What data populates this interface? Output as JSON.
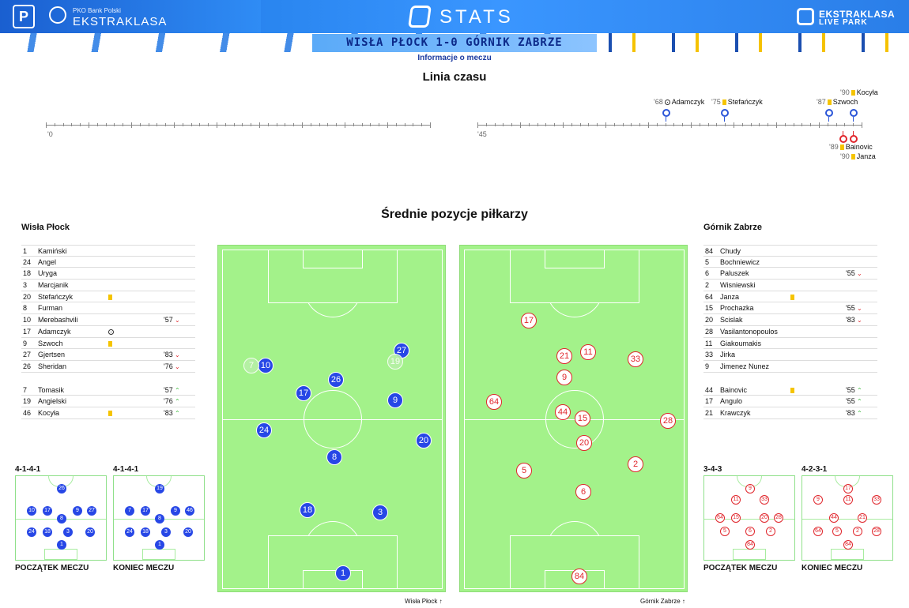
{
  "header": {
    "brand_small": "PKO Bank Polski",
    "brand_big": "EKSTRAKLASA",
    "stats_label": "STATS",
    "live_line1": "EKSTRAKLASA",
    "live_line2": "LIVE PARK",
    "match_title": "WISŁA PŁOCK 1-0 GÓRNIK ZABRZE",
    "match_info_link": "Informacje o meczu",
    "colors": {
      "accent": "#2a86f0",
      "home": "#2747e6",
      "away": "#e0262c",
      "pitch": "#a3f28a"
    }
  },
  "timeline": {
    "title": "Linia czasu",
    "first_half_label": "'0",
    "second_half_label": "'45",
    "events_top": [
      {
        "minute": "'68",
        "icon": "goal-ball-icon",
        "player": "Adamczyk"
      },
      {
        "minute": "'75",
        "icon": "yellow-card-icon",
        "player": "Stefańczyk"
      },
      {
        "minute": "'87",
        "icon": "yellow-card-icon",
        "player": "Szwoch"
      },
      {
        "minute": "'90",
        "icon": "yellow-card-icon",
        "player": "Kocyła"
      }
    ],
    "events_bottom": [
      {
        "minute": "'89",
        "icon": "yellow-card-icon",
        "player": "Bainovic"
      },
      {
        "minute": "'90",
        "icon": "yellow-card-icon",
        "player": "Janza"
      }
    ]
  },
  "positions": {
    "title": "Średnie pozycje piłkarzy",
    "home_caption": "Wisła Płock",
    "away_caption": "Górnik Zabrze",
    "home_players": [
      "27",
      "10",
      "7",
      "19",
      "26",
      "17",
      "9",
      "24",
      "20",
      "8",
      "18",
      "3",
      "1"
    ],
    "away_players": [
      "17",
      "21",
      "11",
      "33",
      "9",
      "64",
      "44",
      "15",
      "28",
      "20",
      "5",
      "2",
      "6",
      "84"
    ]
  },
  "home": {
    "team": "Wisła Płock",
    "starters": [
      {
        "num": "1",
        "name": "Kamiński",
        "icon": "",
        "sub": ""
      },
      {
        "num": "24",
        "name": "Angel",
        "icon": "",
        "sub": ""
      },
      {
        "num": "18",
        "name": "Uryga",
        "icon": "",
        "sub": ""
      },
      {
        "num": "3",
        "name": "Marcjanik",
        "icon": "",
        "sub": ""
      },
      {
        "num": "20",
        "name": "Stefańczyk",
        "icon": "yellow-card-icon",
        "sub": ""
      },
      {
        "num": "8",
        "name": "Furman",
        "icon": "",
        "sub": ""
      },
      {
        "num": "10",
        "name": "Merebashvili",
        "icon": "",
        "sub": "'57"
      },
      {
        "num": "17",
        "name": "Adamczyk",
        "icon": "goal-ball-icon",
        "sub": ""
      },
      {
        "num": "9",
        "name": "Szwoch",
        "icon": "yellow-card-icon",
        "sub": ""
      },
      {
        "num": "27",
        "name": "Gjertsen",
        "icon": "",
        "sub": "'83"
      },
      {
        "num": "26",
        "name": "Sheridan",
        "icon": "",
        "sub": "'76"
      }
    ],
    "subs": [
      {
        "num": "7",
        "name": "Tomasik",
        "icon": "",
        "sub": "'57"
      },
      {
        "num": "19",
        "name": "Angielski",
        "icon": "",
        "sub": "'76"
      },
      {
        "num": "46",
        "name": "Kocyła",
        "icon": "yellow-card-icon",
        "sub": "'83"
      }
    ],
    "formation_start": "4-1-4-1",
    "formation_end": "4-1-4-1",
    "start_caption": "POCZĄTEK MECZU",
    "end_caption": "KONIEC MECZU",
    "start_numbers": [
      "26",
      "10",
      "17",
      "9",
      "27",
      "8",
      "24",
      "18",
      "3",
      "20",
      "1"
    ],
    "end_numbers": [
      "19",
      "7",
      "17",
      "9",
      "46",
      "8",
      "24",
      "18",
      "3",
      "20",
      "1"
    ]
  },
  "away": {
    "team": "Górnik Zabrze",
    "starters": [
      {
        "num": "84",
        "name": "Chudy",
        "icon": "",
        "sub": ""
      },
      {
        "num": "5",
        "name": "Bochniewicz",
        "icon": "",
        "sub": ""
      },
      {
        "num": "6",
        "name": "Paluszek",
        "icon": "",
        "sub": "'55"
      },
      {
        "num": "2",
        "name": "Wisniewski",
        "icon": "",
        "sub": ""
      },
      {
        "num": "64",
        "name": "Janza",
        "icon": "yellow-card-icon",
        "sub": ""
      },
      {
        "num": "15",
        "name": "Prochazka",
        "icon": "",
        "sub": "'55"
      },
      {
        "num": "20",
        "name": "Scislak",
        "icon": "",
        "sub": "'83"
      },
      {
        "num": "28",
        "name": "Vasilantonopoulos",
        "icon": "",
        "sub": ""
      },
      {
        "num": "11",
        "name": "Giakoumakis",
        "icon": "",
        "sub": ""
      },
      {
        "num": "33",
        "name": "Jirka",
        "icon": "",
        "sub": ""
      },
      {
        "num": "9",
        "name": "Jimenez Nunez",
        "icon": "",
        "sub": ""
      }
    ],
    "subs": [
      {
        "num": "44",
        "name": "Bainovic",
        "icon": "yellow-card-icon",
        "sub": "'55"
      },
      {
        "num": "17",
        "name": "Angulo",
        "icon": "",
        "sub": "'55"
      },
      {
        "num": "21",
        "name": "Krawczyk",
        "icon": "",
        "sub": "'83"
      }
    ],
    "formation_start": "3-4-3",
    "formation_end": "4-2-3-1",
    "start_caption": "POCZĄTEK MECZU",
    "end_caption": "KONIEC MECZU",
    "start_numbers": [
      "9",
      "11",
      "33",
      "64",
      "15",
      "20",
      "28",
      "5",
      "6",
      "2",
      "84"
    ],
    "end_numbers": [
      "17",
      "9",
      "11",
      "33",
      "44",
      "21",
      "64",
      "5",
      "2",
      "28",
      "84"
    ]
  }
}
